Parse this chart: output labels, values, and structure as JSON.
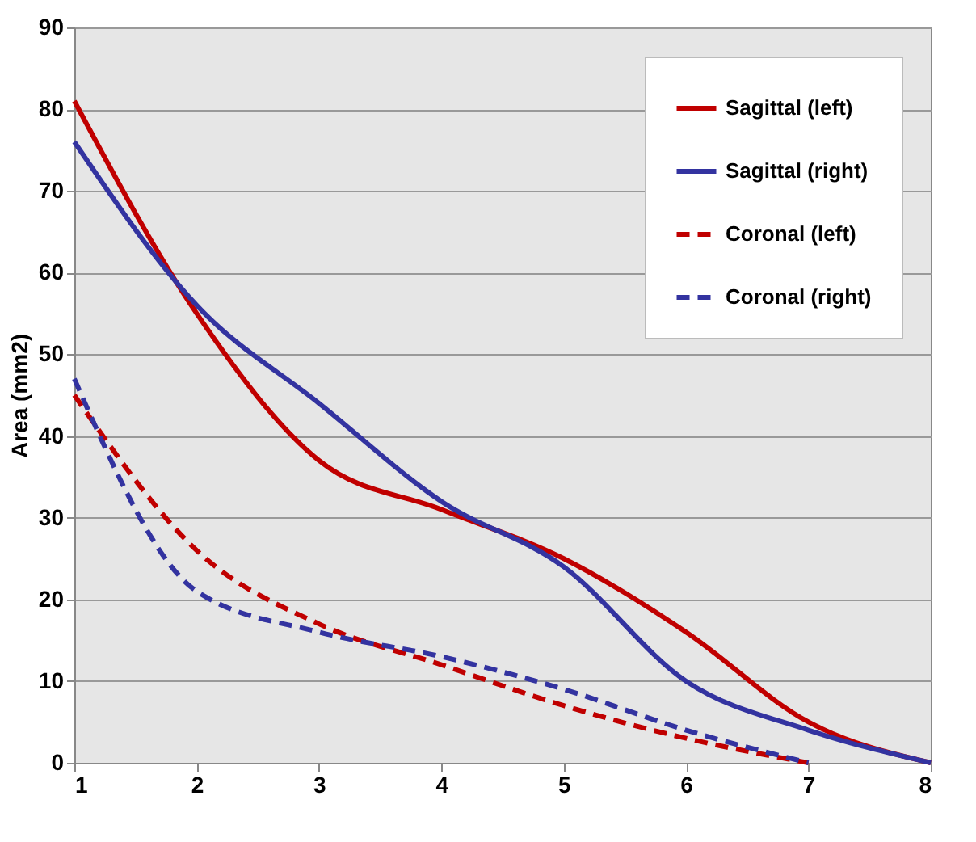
{
  "chart_data": {
    "type": "line",
    "ylabel": "Area (mm2)",
    "x": [
      1,
      2,
      3,
      4,
      5,
      6,
      7,
      8
    ],
    "series": [
      {
        "name": "Sagittal (left)",
        "color": "#c00000",
        "line_style": "solid",
        "values": [
          81,
          55,
          37,
          31,
          25,
          16,
          5,
          0
        ]
      },
      {
        "name": "Sagittal (right)",
        "color": "#3333a0",
        "line_style": "solid",
        "values": [
          76,
          56,
          44,
          32,
          24,
          10,
          4,
          0
        ]
      },
      {
        "name": "Coronal (left)",
        "color": "#c00000",
        "line_style": "dashed",
        "values": [
          45,
          26,
          17,
          12,
          7,
          3,
          0,
          null
        ]
      },
      {
        "name": "Coronal (right)",
        "color": "#3333a0",
        "line_style": "dashed",
        "values": [
          47,
          21,
          16,
          13,
          9,
          4,
          0,
          null
        ]
      }
    ],
    "xlim": [
      1,
      8
    ],
    "xticks": [
      1,
      2,
      3,
      4,
      5,
      6,
      7,
      8
    ],
    "ylim": [
      0,
      90
    ],
    "yticks": [
      0,
      10,
      20,
      30,
      40,
      50,
      60,
      70,
      80,
      90
    ],
    "grid": "y",
    "legend": "top right",
    "marker": "none"
  }
}
